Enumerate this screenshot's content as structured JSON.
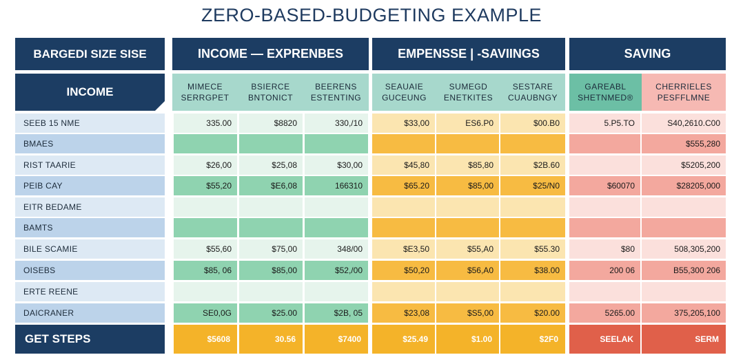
{
  "chart_data": {
    "type": "table",
    "title": "ZERO-BASED-BUDGETING EXAMPLE",
    "corner_label": "BARGEDI SIZE SISE",
    "section_label": "INCOME",
    "footer_label": "GET STEPS",
    "groups": [
      {
        "label": "INCOME — EXPRENBES",
        "columns": [
          [
            "MIMECE",
            "SERRGPET"
          ],
          [
            "BSIERCE",
            "BNTONICT"
          ],
          [
            "BEERENS",
            "ESTENTING"
          ]
        ]
      },
      {
        "label": "EMPENSSE | -SAVIINGS",
        "columns": [
          [
            "SEAUAIE",
            "GUCEUNG"
          ],
          [
            "SUMEGD",
            "ENETKITES"
          ],
          [
            "SESTARE",
            "CUAUBNGY"
          ]
        ]
      },
      {
        "label": "SAVING",
        "columns": [
          [
            "GAREABL",
            "SHETNMED®"
          ],
          [
            "CHERRIELES",
            "PESFFLMNE"
          ]
        ]
      }
    ],
    "row_labels": [
      "SEEB 15 NME",
      "BMAES",
      "RIST TAARIE",
      "PEIB CAY",
      "EITR BEDAME",
      "BAMTS",
      "BILE SCAMIE",
      "OISEBS",
      "ERTE REENE",
      "DAICRANER"
    ],
    "rows": [
      [
        "335.00",
        "$8820",
        "330,/10",
        "$33,00",
        "ES6.P0",
        "$00.B0",
        "5.P5.TO",
        "S40,2610.C00"
      ],
      [
        "",
        "",
        "",
        "",
        "",
        "",
        "",
        "$555,280"
      ],
      [
        "$26,00",
        "$25,08",
        "$30,00",
        "$45,80",
        "$85,80",
        "$2B.60",
        "",
        "$5205,200"
      ],
      [
        "$55,20",
        "$E6,08",
        "166310",
        "$65.20",
        "$85,00",
        "$25/N0",
        "$60070",
        "$28205,000"
      ],
      [
        "",
        "",
        "",
        "",
        "",
        "",
        "",
        ""
      ],
      [
        "",
        "",
        "",
        "",
        "",
        "",
        "",
        ""
      ],
      [
        "$55,60",
        "$75,00",
        "348/00",
        "$E3,50",
        "$55,A0",
        "$55.30",
        "$80",
        "508,305,200"
      ],
      [
        "$85, 06",
        "$85,00",
        "$52,/00",
        "$50,20",
        "$56,A0",
        "$38.00",
        "200 06",
        "B55,300 206"
      ],
      [
        "",
        "",
        "",
        "",
        "",
        "",
        "",
        ""
      ],
      [
        "SE0,0G",
        "$25.00",
        "$2B, 05",
        "$23,08",
        "$S5,00",
        "$20.00",
        "5265.00",
        "375,205,100"
      ]
    ],
    "totals": [
      "$5608",
      "30.56",
      "$7400",
      "$25.49",
      "$1.00",
      "$2F0",
      "SEELAK",
      "SERM"
    ],
    "colors": {
      "navy": "#1c3d63",
      "income_header": "#6cbfa5",
      "expense_header": "#a7d8cc",
      "saving_header": "#f6b9b3",
      "green_light": "#e6f4ec",
      "green_dark": "#8fd3b0",
      "yellow_light": "#fbe5b0",
      "yellow_dark": "#f7bb42",
      "red_light": "#fbe0dc",
      "red_dark": "#f3a89e",
      "label_light": "#dde9f4",
      "label_dark": "#bcd3ea",
      "total_yellow": "#f4b329",
      "total_red": "#e0604a"
    }
  }
}
